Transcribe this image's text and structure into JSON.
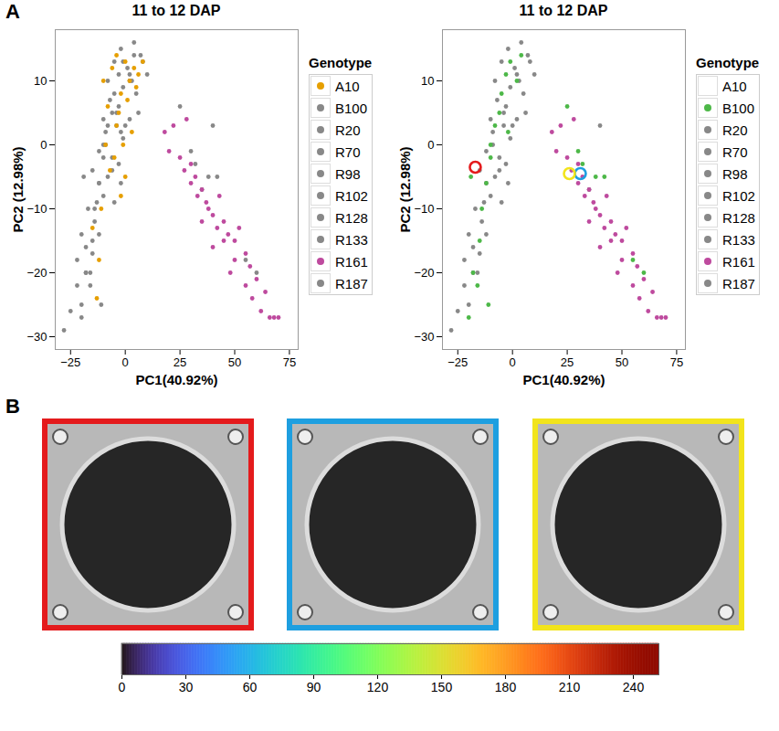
{
  "chart_data": [
    {
      "type": "scatter",
      "panel": "A",
      "title": "11 to 12 DAP",
      "x_label": "PC1(40.92%)",
      "y_label": "PC2 (12.98%)",
      "xlim": [
        -32,
        79
      ],
      "ylim": [
        -32,
        18
      ],
      "xticks": [
        -25,
        0,
        25,
        50,
        75
      ],
      "yticks": [
        -30,
        -20,
        -10,
        0,
        10
      ],
      "grid": true,
      "legend": "right",
      "legend_title": "Genotype",
      "series": [
        {
          "name": "A10",
          "color": "#E69F00",
          "x": [
            -10,
            -8,
            -6,
            -4,
            -2,
            0,
            2,
            4,
            6,
            8,
            -5,
            -3,
            -1,
            1,
            3,
            5,
            -7,
            -9,
            -2,
            0,
            -15,
            -12,
            -13,
            -11,
            -4
          ],
          "y": [
            10,
            6,
            12,
            3,
            8,
            13,
            10,
            12,
            11,
            13,
            -2,
            5,
            0,
            7,
            2,
            9,
            -4,
            0,
            -8,
            -5,
            -13,
            -18,
            -24,
            -10,
            14
          ]
        },
        {
          "name": "B100",
          "color": "#888888",
          "x": [
            -20,
            -18,
            -15,
            -12,
            -10,
            -8,
            -5,
            -3,
            -1,
            2,
            4,
            -14,
            -10,
            -6,
            -2,
            -16,
            -19,
            -11,
            30,
            32,
            38,
            42,
            25,
            55,
            60
          ],
          "y": [
            -27,
            -20,
            -15,
            -6,
            -2,
            3,
            8,
            11,
            13,
            10,
            14,
            -10,
            0,
            5,
            2,
            -22,
            -5,
            -25,
            -1,
            -3,
            -5,
            -5,
            6,
            -18,
            -20
          ]
        },
        {
          "name": "R20",
          "color": "#888888",
          "x": [
            -28,
            -25,
            -22,
            -20,
            -18,
            -15,
            -12
          ],
          "y": [
            -29,
            -26,
            -22,
            -25,
            -20,
            -17,
            -14
          ]
        },
        {
          "name": "R70",
          "color": "#888888",
          "x": [
            -20,
            -17,
            -14,
            -10,
            -8,
            -5,
            -3
          ],
          "y": [
            -14,
            -10,
            -12,
            -8,
            -5,
            -9,
            -3
          ]
        },
        {
          "name": "R98",
          "color": "#888888",
          "x": [
            -15,
            -12,
            -9,
            -6,
            -4,
            -1,
            2
          ],
          "y": [
            -4,
            -1,
            2,
            -2,
            3,
            1,
            4
          ]
        },
        {
          "name": "R102",
          "color": "#888888",
          "x": [
            -10,
            -7,
            -4,
            -1,
            2,
            5,
            8
          ],
          "y": [
            4,
            7,
            5,
            9,
            11,
            8,
            13
          ]
        },
        {
          "name": "R128",
          "color": "#888888",
          "x": [
            -8,
            -5,
            -2,
            1,
            4,
            7,
            10
          ],
          "y": [
            10,
            13,
            15,
            12,
            16,
            14,
            11
          ]
        },
        {
          "name": "R133",
          "color": "#888888",
          "x": [
            -12,
            -9,
            -6,
            -3,
            0,
            3,
            6
          ],
          "y": [
            -6,
            0,
            -4,
            6,
            3,
            10,
            5
          ]
        },
        {
          "name": "R161",
          "color": "#BE4A9E",
          "x": [
            18,
            20,
            22,
            25,
            27,
            28,
            30,
            30,
            32,
            33,
            35,
            35,
            37,
            38,
            40,
            40,
            42,
            43,
            45,
            45,
            47,
            48,
            50,
            50,
            52,
            55,
            55,
            57,
            58,
            60,
            62,
            64,
            66,
            68,
            70
          ],
          "y": [
            2,
            -1,
            3,
            -2,
            -4,
            4,
            -3,
            -6,
            -5,
            -8,
            -7,
            -12,
            -9,
            -10,
            -11,
            -16,
            -13,
            -8,
            -12,
            -15,
            -14,
            -20,
            -15,
            -18,
            -13,
            -17,
            -22,
            -19,
            -24,
            -21,
            -26,
            -23,
            -27,
            -27,
            -27
          ]
        },
        {
          "name": "R187",
          "color": "#888888",
          "x": [
            -22,
            -18,
            -16,
            -13,
            35,
            40,
            -2
          ],
          "y": [
            -18,
            -16,
            -20,
            -9,
            -7,
            3,
            -6
          ]
        }
      ]
    },
    {
      "type": "scatter",
      "title": "11 to 12 DAP",
      "x_label": "PC1(40.92%)",
      "y_label": "PC2 (12.98%)",
      "xlim": [
        -32,
        79
      ],
      "ylim": [
        -32,
        18
      ],
      "xticks": [
        -25,
        0,
        25,
        50,
        75
      ],
      "yticks": [
        -30,
        -20,
        -10,
        0,
        10
      ],
      "grid": true,
      "legend": "right",
      "legend_title": "Genotype",
      "series": [
        {
          "name": "A10",
          "color": null,
          "x": [],
          "y": []
        },
        {
          "name": "B100",
          "color": "#4DB848",
          "x": [
            -20,
            -18,
            -15,
            -12,
            -10,
            -8,
            -5,
            -3,
            -1,
            2,
            4,
            -14,
            -10,
            -6,
            -2,
            -16,
            -19,
            -11,
            30,
            32,
            38,
            42,
            25,
            55,
            60
          ],
          "y": [
            -27,
            -20,
            -15,
            -6,
            -2,
            3,
            8,
            11,
            13,
            10,
            14,
            -10,
            0,
            5,
            2,
            -22,
            -5,
            -25,
            -1,
            -3,
            -5,
            -5,
            6,
            -18,
            -20
          ]
        },
        {
          "name": "R20",
          "color": "#888888",
          "x": [
            -28,
            -25,
            -22,
            -20,
            -18,
            -15,
            -12
          ],
          "y": [
            -29,
            -26,
            -22,
            -25,
            -20,
            -17,
            -14
          ]
        },
        {
          "name": "R70",
          "color": "#888888",
          "x": [
            -20,
            -17,
            -14,
            -10,
            -8,
            -5,
            -3
          ],
          "y": [
            -14,
            -10,
            -12,
            -8,
            -5,
            -9,
            -3
          ]
        },
        {
          "name": "R98",
          "color": "#888888",
          "x": [
            -15,
            -12,
            -9,
            -6,
            -4,
            -1,
            2
          ],
          "y": [
            -4,
            -1,
            2,
            -2,
            3,
            1,
            4
          ]
        },
        {
          "name": "R102",
          "color": "#888888",
          "x": [
            -10,
            -7,
            -4,
            -1,
            2,
            5,
            8
          ],
          "y": [
            4,
            7,
            5,
            9,
            11,
            8,
            13
          ]
        },
        {
          "name": "R128",
          "color": "#888888",
          "x": [
            -8,
            -5,
            -2,
            1,
            4,
            7,
            10
          ],
          "y": [
            10,
            13,
            15,
            12,
            16,
            14,
            11
          ]
        },
        {
          "name": "R133",
          "color": "#888888",
          "x": [
            -12,
            -9,
            -6,
            -3,
            0,
            3,
            6
          ],
          "y": [
            -6,
            0,
            -4,
            6,
            3,
            10,
            5
          ]
        },
        {
          "name": "R161",
          "color": "#BE4A9E",
          "x": [
            18,
            20,
            22,
            25,
            27,
            28,
            30,
            30,
            32,
            33,
            35,
            35,
            37,
            38,
            40,
            40,
            42,
            43,
            45,
            45,
            47,
            48,
            50,
            50,
            52,
            55,
            55,
            57,
            58,
            60,
            62,
            64,
            66,
            68,
            70
          ],
          "y": [
            2,
            -1,
            3,
            -2,
            -4,
            4,
            -3,
            -6,
            -5,
            -8,
            -7,
            -12,
            -9,
            -10,
            -11,
            -16,
            -13,
            -8,
            -12,
            -15,
            -14,
            -20,
            -15,
            -18,
            -13,
            -17,
            -22,
            -19,
            -24,
            -21,
            -26,
            -23,
            -27,
            -27,
            -27
          ]
        },
        {
          "name": "R187",
          "color": "#888888",
          "x": [
            -22,
            -18,
            -16,
            -13,
            35,
            40,
            -2
          ],
          "y": [
            -18,
            -16,
            -20,
            -9,
            -7,
            3,
            -6
          ]
        }
      ],
      "highlights": [
        {
          "x": -17,
          "y": -3.5,
          "color": "#E41A1C"
        },
        {
          "x": 31,
          "y": -4.5,
          "color": "#1E9FE0"
        },
        {
          "x": 26,
          "y": -4.5,
          "color": "#F2E41C"
        }
      ]
    },
    {
      "type": "colorbar",
      "panel": "B",
      "color": "turbo",
      "xlim": [
        0,
        252
      ],
      "xticks": [
        0,
        30,
        60,
        90,
        120,
        150,
        180,
        210,
        240
      ],
      "colors": [
        "#E41A1C",
        "#1E9FE0",
        "#F2E41C"
      ]
    }
  ]
}
